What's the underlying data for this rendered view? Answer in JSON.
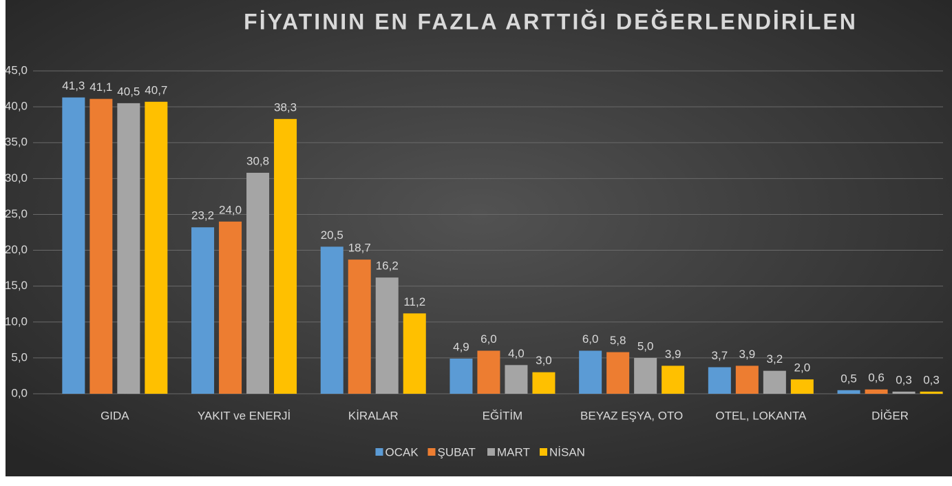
{
  "chart_data": {
    "type": "bar",
    "title": "FİYATININ EN FAZLA ARTTIĞI DEĞERLENDİRİLEN",
    "categories": [
      "GIDA",
      "YAKIT ve ENERJİ",
      "KİRALAR",
      "EĞİTİM",
      "BEYAZ EŞYA, OTO",
      "OTEL, LOKANTA",
      "DİĞER"
    ],
    "series": [
      {
        "name": "OCAK",
        "color": "#5b9bd5",
        "values": [
          41.3,
          23.2,
          20.5,
          4.9,
          6.0,
          3.7,
          0.5
        ],
        "value_labels": [
          "41,3",
          "23,2",
          "20,5",
          "4,9",
          "6,0",
          "3,7",
          "0,5"
        ]
      },
      {
        "name": "ŞUBAT",
        "color": "#ed7d31",
        "values": [
          41.1,
          24.0,
          18.7,
          6.0,
          5.8,
          3.9,
          0.6
        ],
        "value_labels": [
          "41,1",
          "24,0",
          "18,7",
          "6,0",
          "5,8",
          "3,9",
          "0,6"
        ]
      },
      {
        "name": "MART",
        "color": "#a5a5a5",
        "values": [
          40.5,
          30.8,
          16.2,
          4.0,
          5.0,
          3.2,
          0.3
        ],
        "value_labels": [
          "40,5",
          "30,8",
          "16,2",
          "4,0",
          "5,0",
          "3,2",
          "0,3"
        ]
      },
      {
        "name": "NİSAN",
        "color": "#ffc000",
        "values": [
          40.7,
          38.3,
          11.2,
          3.0,
          3.9,
          2.0,
          0.3
        ],
        "value_labels": [
          "40,7",
          "38,3",
          "11,2",
          "3,0",
          "3,9",
          "2,0",
          "0,3"
        ]
      }
    ],
    "ylim": [
      0,
      45
    ],
    "yticks": [
      {
        "value": 0,
        "label": "0,0"
      },
      {
        "value": 5,
        "label": "5,0"
      },
      {
        "value": 10,
        "label": "10,0"
      },
      {
        "value": 15,
        "label": "15,0"
      },
      {
        "value": 20,
        "label": "20,0"
      },
      {
        "value": 25,
        "label": "25,0"
      },
      {
        "value": 30,
        "label": "30,0"
      },
      {
        "value": 35,
        "label": "35,0"
      },
      {
        "value": 40,
        "label": "40,0"
      },
      {
        "value": 45,
        "label": "45,0"
      }
    ],
    "grid": true,
    "legend": "bottom"
  }
}
